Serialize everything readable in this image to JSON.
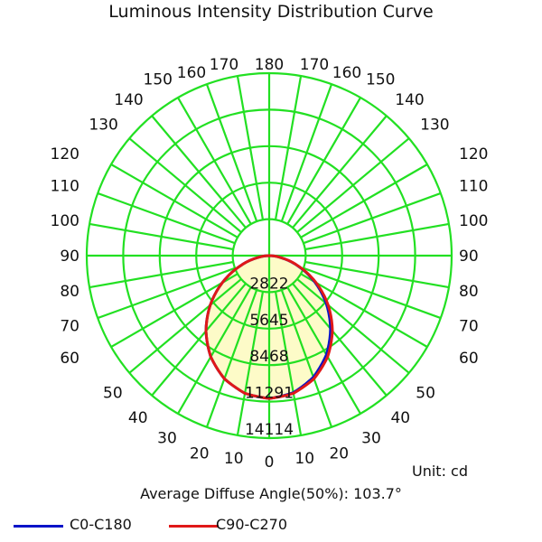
{
  "title": "Luminous Intensity Distribution Curve",
  "unit_text": "Unit: cd",
  "average_text": "Average Diffuse Angle(50%): 103.7°",
  "colors": {
    "grid": "#22e022",
    "fill": "#fdfbc8",
    "c0": "#0a14c8",
    "c90": "#e01818"
  },
  "legend": [
    {
      "label": "C0-C180",
      "color": "#0a14c8"
    },
    {
      "label": "C90-C270",
      "color": "#e01818"
    }
  ],
  "chart_data": {
    "type": "polar",
    "title": "Luminous Intensity Distribution Curve",
    "unit": "cd",
    "radial_max": 14114,
    "radial_ticks": [
      "2822",
      "5645",
      "8468",
      "11291",
      "14114"
    ],
    "radial_tick_values": [
      2822,
      5645,
      8468,
      11291,
      14114
    ],
    "angle_labels_left": [
      "0",
      "10",
      "20",
      "30",
      "40",
      "50",
      "60",
      "70",
      "80",
      "90",
      "100",
      "110",
      "120",
      "130",
      "140",
      "150",
      "160",
      "170",
      "180"
    ],
    "angle_labels_right": [
      "10",
      "20",
      "30",
      "40",
      "50",
      "60",
      "70",
      "80",
      "90",
      "100",
      "110",
      "120",
      "130",
      "140",
      "150",
      "160",
      "170"
    ],
    "angles": [
      0,
      10,
      20,
      30,
      40,
      50,
      60,
      70,
      80,
      90
    ],
    "series": [
      {
        "name": "C0-C180",
        "left": [
          11050,
          10815,
          10135,
          9040,
          7610,
          5955,
          4190,
          2465,
          955,
          0
        ],
        "right": [
          11050,
          10760,
          10000,
          8850,
          7380,
          5760,
          4060,
          2400,
          930,
          0
        ]
      },
      {
        "name": "C90-C270",
        "left": [
          11050,
          10815,
          10135,
          9040,
          7610,
          5955,
          4190,
          2465,
          955,
          0
        ],
        "right": [
          11050,
          10815,
          10135,
          9040,
          7610,
          5955,
          4190,
          2465,
          955,
          0
        ]
      }
    ],
    "average_diffuse_angle_50": 103.7
  }
}
